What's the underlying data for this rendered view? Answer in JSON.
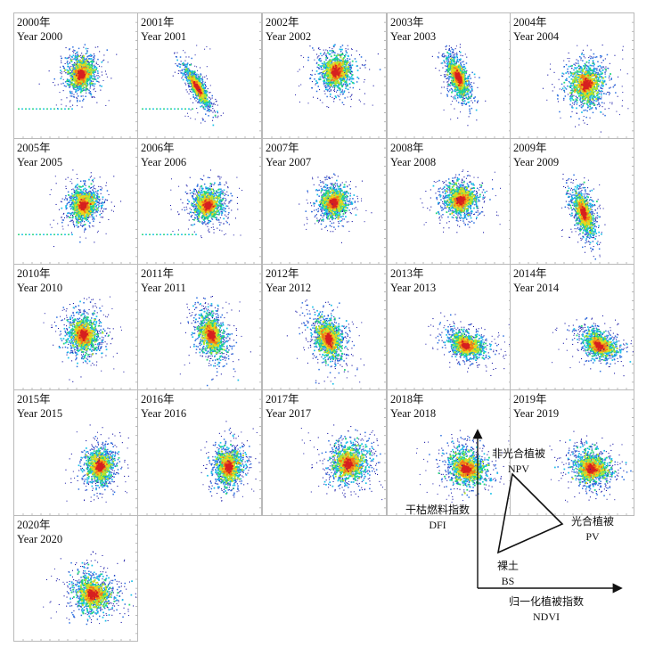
{
  "chart_data": {
    "type": "scatter",
    "panels": [
      {
        "year_cn": "2000年",
        "year_en": "Year 2000",
        "cx": 0.53,
        "cy": 0.48,
        "w": 0.22,
        "h": 0.28,
        "tilt": 1.6,
        "pos_tail": true
      },
      {
        "year_cn": "2001年",
        "year_en": "Year 2001",
        "cx": 0.47,
        "cy": 0.58,
        "w": 0.09,
        "h": 0.34,
        "tilt": 0.3,
        "pos_tail": true
      },
      {
        "year_cn": "2002年",
        "year_en": "Year 2002",
        "cx": 0.58,
        "cy": 0.46,
        "w": 0.26,
        "h": 0.28,
        "tilt": 1.3,
        "pos_tail": false
      },
      {
        "year_cn": "2003年",
        "year_en": "Year 2003",
        "cx": 0.56,
        "cy": 0.5,
        "w": 0.14,
        "h": 0.34,
        "tilt": 0.6,
        "pos_tail": false
      },
      {
        "year_cn": "2004年",
        "year_en": "Year 2004",
        "cx": 0.6,
        "cy": 0.56,
        "w": 0.28,
        "h": 0.34,
        "tilt": 1.4,
        "pos_tail": false
      },
      {
        "year_cn": "2005年",
        "year_en": "Year 2005",
        "cx": 0.55,
        "cy": 0.52,
        "w": 0.22,
        "h": 0.26,
        "tilt": 1.5,
        "pos_tail": true
      },
      {
        "year_cn": "2006年",
        "year_en": "Year 2006",
        "cx": 0.55,
        "cy": 0.52,
        "w": 0.24,
        "h": 0.24,
        "tilt": 1.6,
        "pos_tail": true
      },
      {
        "year_cn": "2007年",
        "year_en": "Year 2007",
        "cx": 0.56,
        "cy": 0.5,
        "w": 0.22,
        "h": 0.24,
        "tilt": 1.4,
        "pos_tail": false
      },
      {
        "year_cn": "2008年",
        "year_en": "Year 2008",
        "cx": 0.58,
        "cy": 0.48,
        "w": 0.26,
        "h": 0.26,
        "tilt": 1.3,
        "pos_tail": false
      },
      {
        "year_cn": "2009年",
        "year_en": "Year 2009",
        "cx": 0.58,
        "cy": 0.58,
        "w": 0.14,
        "h": 0.36,
        "tilt": 0.7,
        "pos_tail": false
      },
      {
        "year_cn": "2010年",
        "year_en": "Year 2010",
        "cx": 0.55,
        "cy": 0.55,
        "w": 0.26,
        "h": 0.3,
        "tilt": 1.0,
        "pos_tail": false
      },
      {
        "year_cn": "2011年",
        "year_en": "Year 2011",
        "cx": 0.58,
        "cy": 0.55,
        "w": 0.2,
        "h": 0.36,
        "tilt": 0.7,
        "pos_tail": false
      },
      {
        "year_cn": "2012年",
        "year_en": "Year 2012",
        "cx": 0.52,
        "cy": 0.58,
        "w": 0.22,
        "h": 0.36,
        "tilt": 0.5,
        "pos_tail": false
      },
      {
        "year_cn": "2013年",
        "year_en": "Year 2013",
        "cx": 0.62,
        "cy": 0.64,
        "w": 0.3,
        "h": 0.18,
        "tilt": 1.9,
        "pos_tail": false
      },
      {
        "year_cn": "2014年",
        "year_en": "Year 2014",
        "cx": 0.7,
        "cy": 0.64,
        "w": 0.3,
        "h": 0.18,
        "tilt": 2.1,
        "pos_tail": false
      },
      {
        "year_cn": "2015年",
        "year_en": "Year 2015",
        "cx": 0.68,
        "cy": 0.6,
        "w": 0.22,
        "h": 0.28,
        "tilt": 1.4,
        "pos_tail": false
      },
      {
        "year_cn": "2016年",
        "year_en": "Year 2016",
        "cx": 0.72,
        "cy": 0.6,
        "w": 0.22,
        "h": 0.3,
        "tilt": 1.2,
        "pos_tail": false
      },
      {
        "year_cn": "2017年",
        "year_en": "Year 2017",
        "cx": 0.68,
        "cy": 0.58,
        "w": 0.3,
        "h": 0.3,
        "tilt": 1.9,
        "pos_tail": false
      },
      {
        "year_cn": "2018年",
        "year_en": "Year 2018",
        "cx": 0.62,
        "cy": 0.62,
        "w": 0.32,
        "h": 0.26,
        "tilt": 2.2,
        "pos_tail": false
      },
      {
        "year_cn": "2019年",
        "year_en": "Year 2019",
        "cx": 0.64,
        "cy": 0.62,
        "w": 0.3,
        "h": 0.26,
        "tilt": 2.0,
        "pos_tail": false
      },
      {
        "year_cn": "2020年",
        "year_en": "Year 2020",
        "cx": 0.62,
        "cy": 0.62,
        "w": 0.32,
        "h": 0.28,
        "tilt": 2.1,
        "pos_tail": false
      }
    ],
    "colormap": [
      "#1a1aa8",
      "#2b6fe0",
      "#19c0e8",
      "#26d67a",
      "#b8e52a",
      "#f2d21b",
      "#f07a18",
      "#d62020"
    ]
  },
  "diagram": {
    "ylabel_cn": "干枯燃料指数",
    "ylabel_en": "DFI",
    "xlabel_cn": "归一化植被指数",
    "xlabel_en": "NDVI",
    "npv_cn": "非光合植被",
    "npv_en": "NPV",
    "pv_cn": "光合植被",
    "pv_en": "PV",
    "bs_cn": "裸土",
    "bs_en": "BS"
  }
}
